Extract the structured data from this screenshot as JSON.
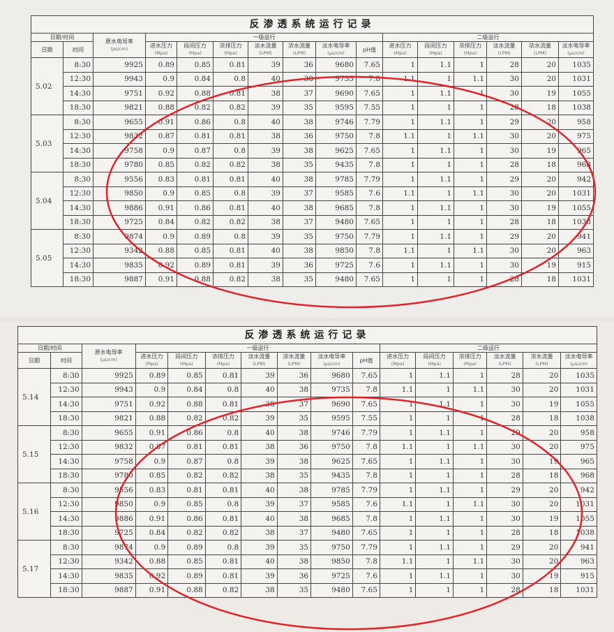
{
  "title": "反渗透系统运行记录",
  "headers": {
    "date_time": "日期/时间",
    "date": "日期",
    "time": "时间",
    "raw_conductivity": "原水电导率",
    "raw_conductivity_unit": "(μs/cm)",
    "stage1": "一级运行",
    "stage2": "二级运行",
    "columns": [
      {
        "label": "进水压力",
        "unit": "(Mpa)"
      },
      {
        "label": "段间压力",
        "unit": "(Mpa)"
      },
      {
        "label": "浓排压力",
        "unit": "(Mpa)"
      },
      {
        "label": "淡水流量",
        "unit": "(LPM)"
      },
      {
        "label": "浓水流量",
        "unit": "(LPM)"
      },
      {
        "label": "淡水电导率",
        "unit": "(μs/cm)"
      },
      {
        "label": "pH值",
        "unit": ""
      }
    ],
    "columns2": [
      {
        "label": "进水压力",
        "unit": "(Mpa)"
      },
      {
        "label": "段间压力",
        "unit": "(Mpa)"
      },
      {
        "label": "浓排压力",
        "unit": "(Mpa)"
      },
      {
        "label": "淡水流量",
        "unit": "(LPM)"
      },
      {
        "label": "浓水流量",
        "unit": "(LPM)"
      },
      {
        "label": "淡水电导率",
        "unit": "(μs/cm)"
      }
    ]
  },
  "annotation_color": "#e0232b",
  "tables": [
    {
      "days": [
        {
          "date": "5.02",
          "rows": [
            [
              "8:30",
              "9925",
              "0.89",
              "0.85",
              "0.81",
              "39",
              "36",
              "9680",
              "7.65",
              "1",
              "1.1",
              "1",
              "28",
              "20",
              "1035"
            ],
            [
              "12:30",
              "9943",
              "0.9",
              "0.84",
              "0.8",
              "40",
              "38",
              "9735",
              "7.8",
              "1.1",
              "1",
              "1.1",
              "30",
              "20",
              "1031"
            ],
            [
              "14:30",
              "9751",
              "0.92",
              "0.88",
              "0.81",
              "38",
              "37",
              "9690",
              "7.65",
              "1",
              "1.1",
              "1",
              "30",
              "19",
              "1055"
            ],
            [
              "18:30",
              "9821",
              "0.88",
              "0.82",
              "0.82",
              "39",
              "35",
              "9595",
              "7.55",
              "1",
              "1",
              "1",
              "28",
              "18",
              "1038"
            ]
          ]
        },
        {
          "date": "5.03",
          "rows": [
            [
              "8:30",
              "9655",
              "0.91",
              "0.86",
              "0.8",
              "40",
              "38",
              "9746",
              "7.79",
              "1",
              "1.1",
              "1",
              "29",
              "20",
              "958"
            ],
            [
              "12:30",
              "9832",
              "0.87",
              "0.81",
              "0.81",
              "38",
              "36",
              "9750",
              "7.8",
              "1.1",
              "1",
              "1.1",
              "30",
              "20",
              "975"
            ],
            [
              "14:30",
              "9758",
              "0.9",
              "0.87",
              "0.8",
              "39",
              "38",
              "9625",
              "7.65",
              "1",
              "1.1",
              "1",
              "30",
              "19",
              "965"
            ],
            [
              "18:30",
              "9780",
              "0.85",
              "0.82",
              "0.82",
              "38",
              "35",
              "9435",
              "7.8",
              "1",
              "1",
              "1",
              "28",
              "18",
              "968"
            ]
          ]
        },
        {
          "date": "5.04",
          "rows": [
            [
              "8:30",
              "9556",
              "0.83",
              "0.81",
              "0.81",
              "40",
              "38",
              "9785",
              "7.79",
              "1",
              "1.1",
              "1",
              "29",
              "20",
              "942"
            ],
            [
              "12:30",
              "9850",
              "0.9",
              "0.85",
              "0.8",
              "39",
              "37",
              "9585",
              "7.6",
              "1.1",
              "1",
              "1.1",
              "30",
              "20",
              "1031"
            ],
            [
              "14:30",
              "9886",
              "0.91",
              "0.86",
              "0.81",
              "40",
              "38",
              "9685",
              "7.8",
              "1",
              "1.1",
              "1",
              "30",
              "19",
              "1055"
            ],
            [
              "18:30",
              "9725",
              "0.84",
              "0.82",
              "0.82",
              "38",
              "37",
              "9480",
              "7.65",
              "1",
              "1",
              "1",
              "28",
              "18",
              "1038"
            ]
          ]
        },
        {
          "date": "5.05",
          "rows": [
            [
              "8:30",
              "9874",
              "0.9",
              "0.89",
              "0.8",
              "39",
              "35",
              "9750",
              "7.79",
              "1",
              "1.1",
              "1",
              "29",
              "20",
              "941"
            ],
            [
              "12:30",
              "9342",
              "0.88",
              "0.85",
              "0.81",
              "40",
              "38",
              "9850",
              "7.8",
              "1.1",
              "1",
              "1.1",
              "30",
              "20",
              "963"
            ],
            [
              "14:30",
              "9835",
              "0.92",
              "0.89",
              "0.81",
              "39",
              "36",
              "9725",
              "7.6",
              "1",
              "1.1",
              "1",
              "30",
              "19",
              "915"
            ],
            [
              "18:30",
              "9887",
              "0.91",
              "0.88",
              "0.82",
              "38",
              "35",
              "9480",
              "7.65",
              "1",
              "1",
              "1",
              "28",
              "18",
              "1031"
            ]
          ]
        }
      ]
    },
    {
      "days": [
        {
          "date": "5.14",
          "rows": [
            [
              "8:30",
              "9925",
              "0.89",
              "0.85",
              "0.81",
              "39",
              "36",
              "9680",
              "7.65",
              "1",
              "1.1",
              "1",
              "28",
              "20",
              "1035"
            ],
            [
              "12:30",
              "9943",
              "0.9",
              "0.84",
              "0.8",
              "40",
              "38",
              "9735",
              "7.8",
              "1.1",
              "1",
              "1.1",
              "30",
              "20",
              "1031"
            ],
            [
              "14:30",
              "9751",
              "0.92",
              "0.88",
              "0.81",
              "38",
              "37",
              "9690",
              "7.65",
              "1",
              "1.1",
              "1",
              "30",
              "19",
              "1055"
            ],
            [
              "18:30",
              "9821",
              "0.88",
              "0.82",
              "0.82",
              "39",
              "35",
              "9595",
              "7.55",
              "1",
              "1",
              "1",
              "28",
              "18",
              "1038"
            ]
          ]
        },
        {
          "date": "5.15",
          "rows": [
            [
              "8:30",
              "9655",
              "0.91",
              "0.86",
              "0.8",
              "40",
              "38",
              "9746",
              "7.79",
              "1",
              "1.1",
              "1",
              "29",
              "20",
              "958"
            ],
            [
              "12:30",
              "9832",
              "0.87",
              "0.81",
              "0.81",
              "38",
              "36",
              "9750",
              "7.8",
              "1.1",
              "1",
              "1.1",
              "30",
              "20",
              "975"
            ],
            [
              "14:30",
              "9758",
              "0.9",
              "0.87",
              "0.8",
              "39",
              "38",
              "9625",
              "7.65",
              "1",
              "1.1",
              "1",
              "30",
              "19",
              "965"
            ],
            [
              "18:30",
              "9780",
              "0.85",
              "0.82",
              "0.82",
              "38",
              "35",
              "9435",
              "7.8",
              "1",
              "1",
              "1",
              "28",
              "18",
              "968"
            ]
          ]
        },
        {
          "date": "5.16",
          "rows": [
            [
              "8:30",
              "9556",
              "0.83",
              "0.81",
              "0.81",
              "40",
              "38",
              "9785",
              "7.79",
              "1",
              "1.1",
              "1",
              "29",
              "20",
              "942"
            ],
            [
              "12:30",
              "9850",
              "0.9",
              "0.85",
              "0.8",
              "39",
              "37",
              "9585",
              "7.6",
              "1.1",
              "1",
              "1.1",
              "30",
              "20",
              "1031"
            ],
            [
              "14:30",
              "9886",
              "0.91",
              "0.86",
              "0.81",
              "40",
              "38",
              "9685",
              "7.8",
              "1",
              "1.1",
              "1",
              "30",
              "19",
              "1055"
            ],
            [
              "18:30",
              "9725",
              "0.84",
              "0.82",
              "0.82",
              "38",
              "37",
              "9480",
              "7.65",
              "1",
              "1",
              "1",
              "28",
              "18",
              "1038"
            ]
          ]
        },
        {
          "date": "5.17",
          "rows": [
            [
              "8:30",
              "9874",
              "0.9",
              "0.89",
              "0.8",
              "39",
              "35",
              "9750",
              "7.79",
              "1",
              "1.1",
              "1",
              "29",
              "20",
              "941"
            ],
            [
              "12:30",
              "9342",
              "0.88",
              "0.85",
              "0.81",
              "40",
              "38",
              "9850",
              "7.8",
              "1.1",
              "1",
              "1.1",
              "30",
              "20",
              "963"
            ],
            [
              "14:30",
              "9835",
              "0.92",
              "0.89",
              "0.81",
              "39",
              "36",
              "9725",
              "7.6",
              "1",
              "1.1",
              "1",
              "30",
              "19",
              "915"
            ],
            [
              "18:30",
              "9887",
              "0.91",
              "0.88",
              "0.82",
              "38",
              "35",
              "9480",
              "7.65",
              "1",
              "1",
              "1",
              "28",
              "18",
              "1031"
            ]
          ]
        }
      ]
    }
  ]
}
